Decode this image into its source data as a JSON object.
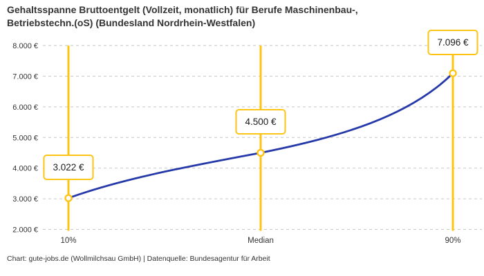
{
  "title": {
    "line1": "Gehaltsspanne Bruttoentgelt (Vollzeit, monatlich) für Berufe Maschinenbau-,",
    "line2": "Betriebstechn.(oS) (Bundesland Nordrhein-Westfalen)"
  },
  "footer": {
    "text": "Chart: gute-jobs.de (Wollmilchsau GmbH) | Datenquelle: Bundesagentur für Arbeit"
  },
  "chart_data": {
    "type": "line",
    "title": "Gehaltsspanne Bruttoentgelt (Vollzeit, monatlich) für Berufe Maschinenbau-, Betriebstechn.(oS) (Bundesland Nordrhein-Westfalen)",
    "categories": [
      "10%",
      "Median",
      "90%"
    ],
    "values": [
      3022,
      4500,
      7096
    ],
    "point_labels": [
      "3.022 €",
      "4.500 €",
      "7.096 €"
    ],
    "ylim": [
      2000,
      8000
    ],
    "ytick_values": [
      8000,
      7000,
      6000,
      5000,
      4000,
      3000,
      2000
    ],
    "ytick_labels": [
      "8.000 €",
      "7.000 €",
      "6.000 €",
      "5.000 €",
      "4.000 €",
      "3.000 €",
      "2.000 €"
    ],
    "grid": "horizontal-dashed",
    "legend": "none",
    "colors": {
      "line": "#2639A8",
      "accent": "#FDC413",
      "grid": "#C6C6C6",
      "text": "#333333",
      "marker_fill": "#FFFFFF"
    }
  }
}
